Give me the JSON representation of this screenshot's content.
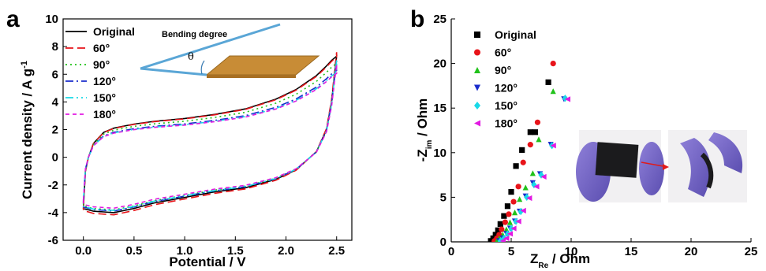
{
  "colors": {
    "Original": "#000000",
    "60°": "#e8141a",
    "90°": "#21c21a",
    "120°": "#1a2ccc",
    "150°": "#19d9e8",
    "180°": "#e21ae2"
  },
  "chart_data": [
    {
      "panel": "a",
      "type": "line",
      "xlabel": "Potential / V",
      "ylabel": "Current density / A g-1",
      "xlim": [
        -0.2,
        2.65
      ],
      "ylim": [
        -6,
        10
      ],
      "xticks": [
        "0.0",
        "0.5",
        "1.0",
        "1.5",
        "2.0",
        "2.5"
      ],
      "yticks": [
        "-6",
        "-4",
        "-2",
        "0",
        "2",
        "4",
        "6",
        "8",
        "10"
      ],
      "legend_position": "top-left",
      "inset": {
        "title": "Bending degree",
        "symbol": "θ"
      },
      "cv_profile": {
        "x": [
          0.0,
          0.02,
          0.05,
          0.1,
          0.2,
          0.3,
          0.5,
          0.7,
          1.0,
          1.3,
          1.6,
          1.9,
          2.1,
          2.3,
          2.4,
          2.45,
          2.5
        ],
        "upper": [
          -3.7,
          -1.0,
          0.0,
          1.0,
          1.8,
          2.1,
          2.4,
          2.6,
          2.8,
          3.1,
          3.5,
          4.2,
          4.9,
          5.9,
          6.6,
          7.0,
          7.3
        ],
        "lower": [
          -3.7,
          -3.75,
          -3.8,
          -3.9,
          -3.95,
          -4.0,
          -3.7,
          -3.3,
          -2.9,
          -2.5,
          -2.2,
          -1.6,
          -0.9,
          0.4,
          2.0,
          4.0,
          7.3
        ]
      },
      "series": [
        {
          "name": "Original",
          "upper_scale": 1.0,
          "lower_scale": 1.0,
          "dash": ""
        },
        {
          "name": "60°",
          "upper_scale": 0.99,
          "lower_scale": 1.04,
          "dash": "10,5"
        },
        {
          "name": "90°",
          "upper_scale": 0.93,
          "lower_scale": 0.95,
          "dash": "2,4"
        },
        {
          "name": "120°",
          "upper_scale": 0.86,
          "lower_scale": 0.97,
          "dash": "10,4,2,4"
        },
        {
          "name": "150°",
          "upper_scale": 0.84,
          "lower_scale": 0.96,
          "dash": "10,4,2,4,2,4"
        },
        {
          "name": "180°",
          "upper_scale": 0.83,
          "lower_scale": 0.92,
          "dash": "5,4"
        }
      ]
    },
    {
      "panel": "b",
      "type": "scatter",
      "xlabel": "Z_Re / Ohm",
      "ylabel": "-Z_im / Ohm",
      "xlim": [
        0,
        25
      ],
      "ylim": [
        0,
        25
      ],
      "xticks": [
        "0",
        "5",
        "10",
        "15",
        "20",
        "25"
      ],
      "yticks": [
        "0",
        "5",
        "10",
        "15",
        "20",
        "25"
      ],
      "legend_position": "top-left",
      "inset": "photos of device: flat and bent",
      "series": [
        {
          "name": "Original",
          "marker": "square",
          "x": [
            3.3,
            3.5,
            3.7,
            3.9,
            4.1,
            4.4,
            4.7,
            5.0,
            5.4,
            5.9,
            6.6,
            7.0,
            8.1
          ],
          "y": [
            0.1,
            0.4,
            0.8,
            1.3,
            2.0,
            2.9,
            4.0,
            5.6,
            8.5,
            10.3,
            12.3,
            12.3,
            17.9
          ]
        },
        {
          "name": "60°",
          "marker": "circle",
          "x": [
            3.6,
            3.8,
            4.0,
            4.2,
            4.5,
            4.8,
            5.2,
            5.6,
            6.0,
            6.6,
            7.2,
            8.5
          ],
          "y": [
            0.1,
            0.4,
            0.8,
            1.4,
            2.2,
            3.1,
            4.5,
            6.2,
            8.9,
            10.9,
            13.4,
            20.0
          ]
        },
        {
          "name": "90°",
          "marker": "triangle-up",
          "x": [
            3.8,
            4.0,
            4.3,
            4.6,
            4.9,
            5.3,
            5.7,
            6.2,
            6.8,
            7.3,
            8.5
          ],
          "y": [
            0.1,
            0.4,
            0.8,
            1.4,
            2.2,
            3.3,
            4.8,
            6.1,
            7.7,
            11.5,
            16.9
          ]
        },
        {
          "name": "120°",
          "marker": "triangle-down",
          "x": [
            4.0,
            4.3,
            4.6,
            4.9,
            5.3,
            5.7,
            6.2,
            6.8,
            7.4,
            8.3,
            9.4
          ],
          "y": [
            0.1,
            0.4,
            0.9,
            1.5,
            2.3,
            3.4,
            5.1,
            6.6,
            7.6,
            10.9,
            16.0
          ]
        },
        {
          "name": "150°",
          "marker": "diamond",
          "x": [
            4.1,
            4.4,
            4.7,
            5.0,
            5.4,
            5.8,
            6.3,
            6.9,
            7.5,
            8.4,
            9.5
          ],
          "y": [
            0.1,
            0.4,
            0.9,
            1.5,
            2.3,
            3.4,
            5.0,
            6.4,
            7.5,
            10.8,
            16.1
          ]
        },
        {
          "name": "180°",
          "marker": "triangle-left",
          "x": [
            4.3,
            4.6,
            4.9,
            5.2,
            5.6,
            6.0,
            6.5,
            7.1,
            7.7,
            8.5,
            9.7
          ],
          "y": [
            0.1,
            0.4,
            0.9,
            1.5,
            2.3,
            3.5,
            4.9,
            6.2,
            7.3,
            10.8,
            16.0
          ]
        }
      ]
    }
  ]
}
